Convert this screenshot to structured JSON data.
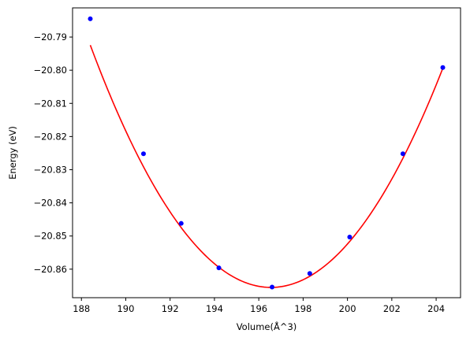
{
  "chart_data": {
    "type": "scatter",
    "title": "",
    "xlabel": "Volume(Å^3)",
    "ylabel": "Energy (eV)",
    "xlim": [
      187.6,
      205.1
    ],
    "ylim": [
      -20.8686,
      -20.7812
    ],
    "xticks": [
      188,
      190,
      192,
      194,
      196,
      198,
      200,
      202,
      204
    ],
    "xtick_labels": [
      "188",
      "190",
      "192",
      "194",
      "196",
      "198",
      "200",
      "202",
      "204"
    ],
    "yticks": [
      -20.79,
      -20.8,
      -20.81,
      -20.82,
      -20.83,
      -20.84,
      -20.85,
      -20.86
    ],
    "ytick_labels": [
      "−20.79",
      "−20.80",
      "−20.81",
      "−20.82",
      "−20.83",
      "−20.84",
      "−20.85",
      "−20.86"
    ],
    "grid": false,
    "legend": "none",
    "series": [
      {
        "kind": "points",
        "color": "#0000ff",
        "x": [
          188.4,
          190.8,
          192.5,
          194.2,
          196.6,
          198.3,
          200.1,
          202.5,
          204.3
        ],
        "y": [
          -20.7845,
          -20.8252,
          -20.8462,
          -20.8596,
          -20.8654,
          -20.8613,
          -20.8503,
          -20.8252,
          -20.7992
        ]
      },
      {
        "kind": "fit-curve",
        "color": "#ff0000",
        "x_range": [
          188.4,
          204.3
        ],
        "vertex_x": 196.55,
        "vertex_y": -20.8655,
        "a": 0.0011
      }
    ]
  }
}
